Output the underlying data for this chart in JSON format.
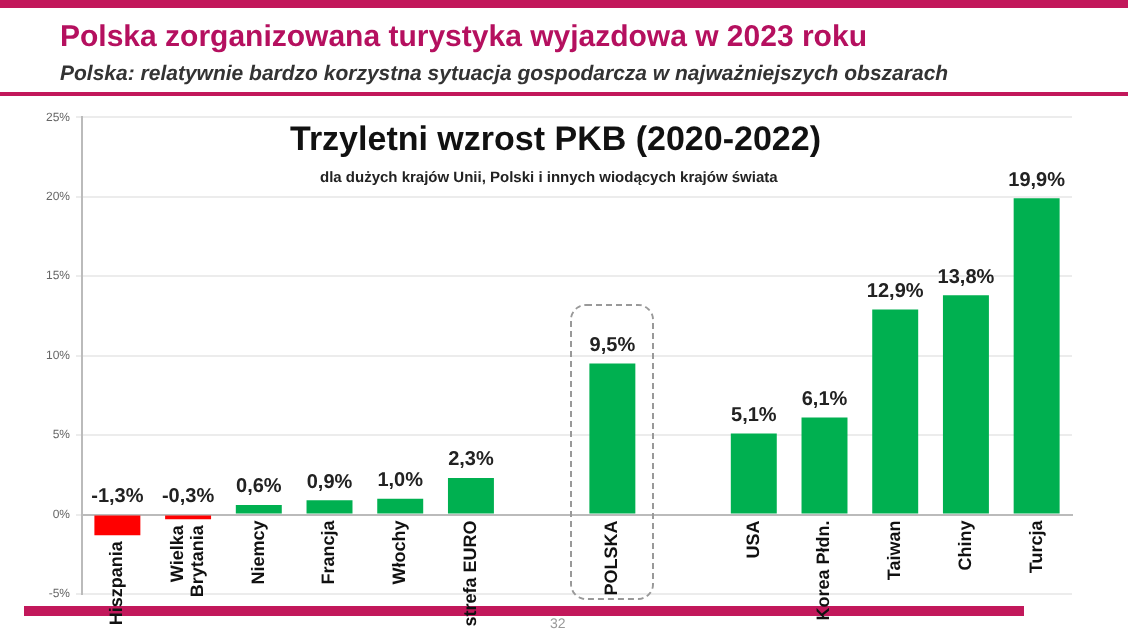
{
  "chart_data": {
    "type": "bar",
    "title": "Polska zorganizowana turystyka wyjazdowa w 2023 roku",
    "subtitle": "Polska: relatywnie bardzo korzystna sytuacja gospodarcza w najważniejszych obszarach",
    "annotations": [
      "Trzyletni wzrost PKB (2020-2022)",
      "dla dużych krajów Unii, Polski i innych wiodących krajów świata",
      "32"
    ],
    "categories": [
      "Hiszpania",
      "Wielka Brytania",
      "Niemcy",
      "Francja",
      "Włochy",
      "strefa EURO",
      null,
      "POLSKA",
      null,
      "USA",
      "Korea Płdn.",
      "Taiwan",
      "Chiny",
      "Turcja"
    ],
    "values": [
      -1.3,
      -0.3,
      0.6,
      0.9,
      1.0,
      2.3,
      null,
      9.5,
      null,
      5.1,
      6.1,
      12.9,
      13.8,
      19.9
    ],
    "value_labels": [
      "-1,3%",
      "-0,3%",
      "0,6%",
      "0,9%",
      "1,0%",
      "2,3%",
      null,
      "9,5%",
      null,
      "5,1%",
      "6,1%",
      "12,9%",
      "13,8%",
      "19,9%"
    ],
    "colors": [
      "#ff0000",
      "#ff0000",
      "#00b050",
      "#00b050",
      "#00b050",
      "#00b050",
      "#00b050",
      "#00b050",
      "#00b050",
      "#00b050",
      "#00b050",
      "#00b050",
      "#00b050",
      "#00b050"
    ],
    "ylim": [
      -5,
      25
    ],
    "yticks": [
      {
        "value": -5,
        "label": "-5%"
      },
      {
        "value": 0,
        "label": "0%"
      },
      {
        "value": 5,
        "label": "5%"
      },
      {
        "value": 10,
        "label": "10%"
      },
      {
        "value": 15,
        "label": "15%"
      },
      {
        "value": 20,
        "label": "20%"
      },
      {
        "value": 25,
        "label": "25%"
      }
    ],
    "grid": "y",
    "legend": false
  }
}
